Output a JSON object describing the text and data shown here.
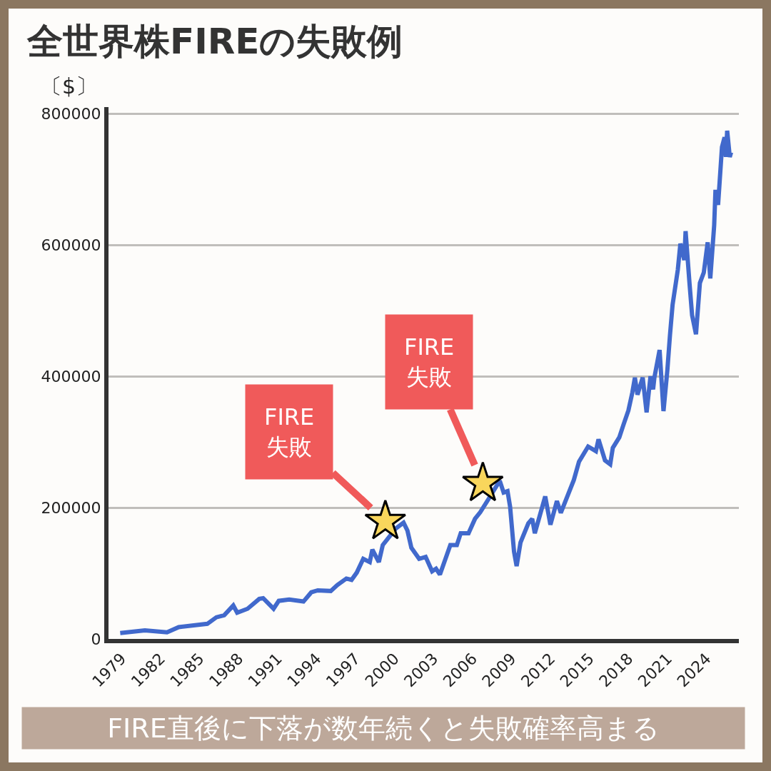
{
  "chart_data": {
    "type": "line",
    "title": "全世界株FIREの失敗例",
    "ylabel": "〔$〕",
    "x": [
      1978.9,
      1980.8,
      1982.5,
      1983.4,
      1985.6,
      1986.3,
      1986.9,
      1987.6,
      1987.9,
      1988.7,
      1989.6,
      1989.9,
      1990.7,
      1991.1,
      1991.9,
      1993.0,
      1993.6,
      1994.1,
      1995.1,
      1995.6,
      1996.3,
      1996.7,
      1997.1,
      1997.6,
      1998.1,
      1998.3,
      1998.8,
      1999.1,
      2000.1,
      2000.7,
      2001.0,
      2001.3,
      2001.9,
      2002.4,
      2002.9,
      2003.2,
      2003.5,
      2004.3,
      2004.8,
      2005.1,
      2005.7,
      2006.2,
      2006.6,
      2007.3,
      2008.1,
      2008.4,
      2008.7,
      2008.9,
      2009.2,
      2009.4,
      2009.7,
      2010.3,
      2010.6,
      2010.8,
      2011.6,
      2012.0,
      2012.5,
      2012.8,
      2013.8,
      2014.2,
      2014.9,
      2015.5,
      2015.7,
      2016.2,
      2016.6,
      2016.8,
      2017.3,
      2017.6,
      2018.0,
      2018.3,
      2018.5,
      2018.7,
      2019.1,
      2019.4,
      2019.7,
      2019.9,
      2020.0,
      2020.4,
      2020.7,
      2021.0,
      2021.2,
      2021.4,
      2021.8,
      2022.0,
      2022.3,
      2022.4,
      2022.7,
      2022.9,
      2023.2,
      2023.5,
      2023.8,
      2024.1,
      2024.3,
      2024.6,
      2024.7,
      2024.9,
      2025.2,
      2025.4,
      2025.5,
      2025.6,
      2025.8,
      2025.9
    ],
    "series": [
      {
        "color": "#4169cc",
        "values": [
          9000,
          13000,
          10000,
          18000,
          23000,
          33000,
          36000,
          51000,
          40000,
          46000,
          61000,
          62000,
          46000,
          58000,
          60000,
          57000,
          71000,
          74000,
          73000,
          82000,
          92000,
          90000,
          101000,
          122000,
          117000,
          136000,
          117000,
          143000,
          168000,
          177000,
          165000,
          139000,
          122000,
          125000,
          103000,
          107000,
          98000,
          143000,
          143000,
          161000,
          161000,
          183000,
          193000,
          215000,
          241000,
          223000,
          225000,
          201000,
          133000,
          111000,
          147000,
          176000,
          183000,
          161000,
          217000,
          174000,
          210000,
          192000,
          242000,
          270000,
          293000,
          286000,
          304000,
          272000,
          266000,
          291000,
          307000,
          325000,
          348000,
          375000,
          398000,
          372000,
          398000,
          345000,
          400000,
          380000,
          398000,
          440000,
          347000,
          410000,
          463000,
          509000,
          562000,
          602000,
          577000,
          621000,
          542000,
          493000,
          464000,
          542000,
          558000,
          604000,
          549000,
          630000,
          684000,
          661000,
          749000,
          764000,
          734000,
          774000,
          734000,
          741000
        ]
      },
      {
        "type": "scatter",
        "marker": "star",
        "color": "#f9d65c",
        "x": [
          1999.3,
          2006.8
        ],
        "values": [
          179000,
          237000
        ]
      }
    ],
    "annotations": [
      {
        "text": "FIRE\n失敗",
        "x": 1999.3,
        "y": 179000
      },
      {
        "text": "FIRE\n失敗",
        "x": 2006.8,
        "y": 237000
      },
      "FIRE直後に下落が数年続くと失敗確率高まる"
    ],
    "xlim": [
      1978,
      2026.5
    ],
    "xticks": [
      1979,
      1982,
      1985,
      1988,
      1991,
      1994,
      1997,
      2000,
      2003,
      2006,
      2009,
      2012,
      2015,
      2018,
      2021,
      2024
    ],
    "ylim": [
      0,
      810000
    ],
    "yticks": [
      0,
      200000,
      400000,
      600000,
      800000
    ],
    "grid": "y",
    "marker": "none",
    "line_style": "solid"
  }
}
